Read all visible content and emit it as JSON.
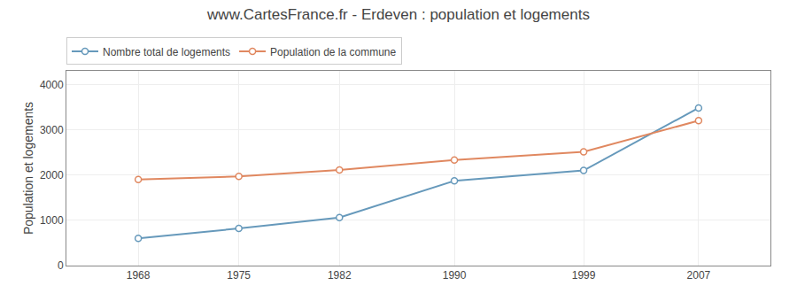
{
  "chart_data": {
    "type": "line",
    "title": "www.CartesFrance.fr - Erdeven : population et logements",
    "ylabel": "Population et logements",
    "x": [
      1968,
      1975,
      1982,
      1990,
      1999,
      2007
    ],
    "series": [
      {
        "name": "Nombre total de logements",
        "color": "#6699bb",
        "values": [
          600,
          820,
          1060,
          1870,
          2100,
          3480
        ]
      },
      {
        "name": "Population de la commune",
        "color": "#e08860",
        "values": [
          1900,
          1970,
          2110,
          2330,
          2510,
          3200
        ]
      }
    ],
    "xlim": [
      1963,
      2012
    ],
    "xticks": [
      1968,
      1975,
      1982,
      1990,
      1999,
      2007
    ],
    "ylim": [
      0,
      4300
    ],
    "yticks": [
      0,
      1000,
      2000,
      3000,
      4000
    ],
    "grid": true,
    "legend": "upper left",
    "marker": "circle"
  }
}
